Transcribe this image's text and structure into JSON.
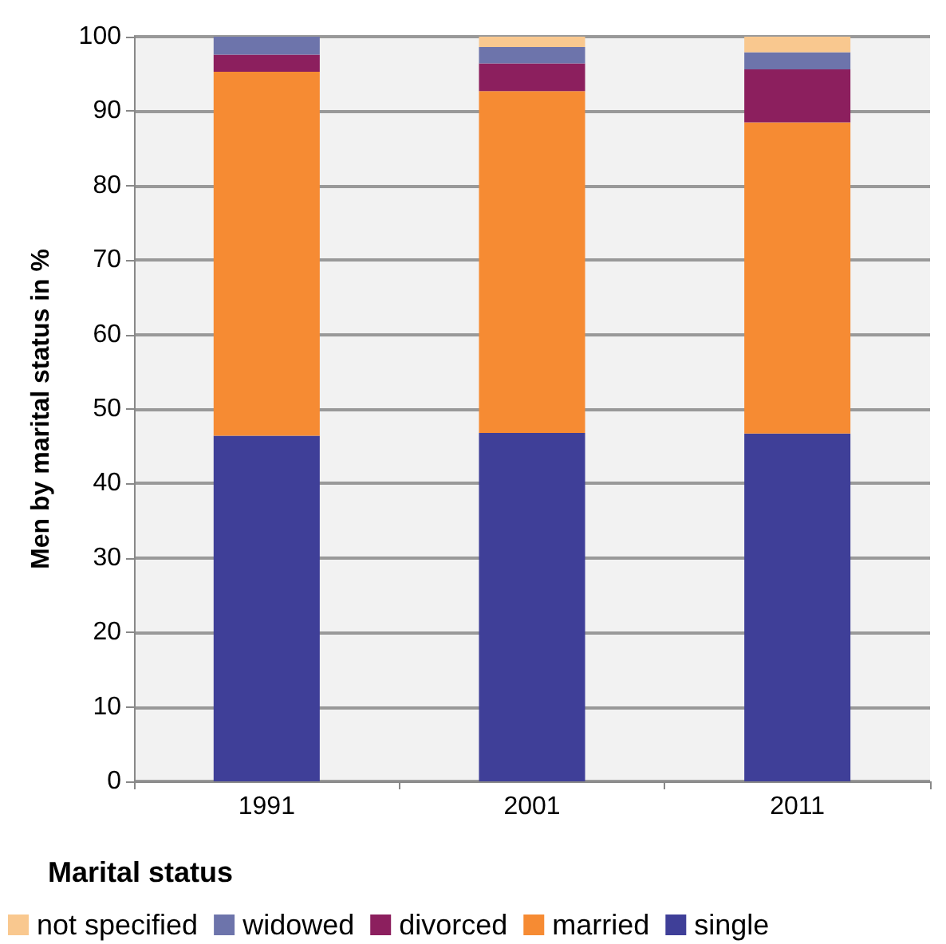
{
  "chart_data": {
    "type": "bar",
    "stacked": true,
    "ylabel": "Men by marital status in %",
    "legend_title": "Marital status",
    "legend": "bottom left",
    "grid": "y",
    "categories": [
      "1991",
      "2001",
      "2011"
    ],
    "ylim": [
      0,
      100
    ],
    "yticks": [
      0,
      10,
      20,
      30,
      40,
      50,
      60,
      70,
      80,
      90,
      100
    ],
    "series": [
      {
        "name": "single",
        "color": "#3f3f98",
        "values": [
          46.4,
          46.8,
          46.7
        ]
      },
      {
        "name": "married",
        "color": "#f68b33",
        "values": [
          48.9,
          45.9,
          41.8
        ]
      },
      {
        "name": "divorced",
        "color": "#8c1f5e",
        "values": [
          2.3,
          3.7,
          7.1
        ]
      },
      {
        "name": "widowed",
        "color": "#6d74ab",
        "values": [
          2.4,
          2.2,
          2.3
        ]
      },
      {
        "name": "not specified",
        "color": "#f9c88f",
        "values": [
          0,
          1.4,
          2.1
        ]
      }
    ]
  }
}
